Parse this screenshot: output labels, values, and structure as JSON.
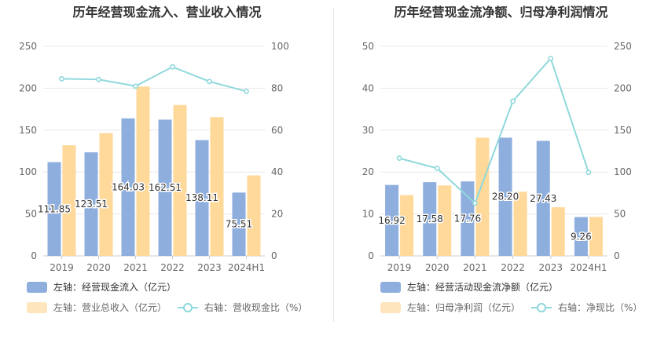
{
  "colors": {
    "bar_primary": "#8eaedd",
    "bar_secondary": "#ffd99a",
    "line": "#8fd8dc",
    "grid": "#e8e8e8",
    "axis_text": "#666666",
    "label_text": "#333333"
  },
  "chart_data": [
    {
      "type": "bar+line",
      "title": "历年经营现金流入、营业收入情况",
      "categories": [
        "2019",
        "2020",
        "2021",
        "2022",
        "2023",
        "2024H1"
      ],
      "left_axis": {
        "ylim": [
          0,
          250
        ],
        "ticks": [
          "0",
          "50",
          "100",
          "150",
          "200",
          "250"
        ]
      },
      "right_axis": {
        "ylim": [
          0,
          100
        ],
        "ticks": [
          "0",
          "20",
          "40",
          "60",
          "80",
          "100"
        ]
      },
      "series": [
        {
          "name": "左轴：经营现金流入（亿元）",
          "kind": "bar",
          "axis": "left",
          "values": [
            111.85,
            123.51,
            164.03,
            162.51,
            138.11,
            75.51
          ],
          "labels": [
            "111.85",
            "123.51",
            "164.03",
            "162.51",
            "138.11",
            "75.51"
          ]
        },
        {
          "name": "左轴：营业总收入（亿元）",
          "kind": "bar",
          "axis": "left",
          "values": [
            132,
            146.5,
            202,
            180,
            165.5,
            96
          ]
        },
        {
          "name": "右轴：营收现金比（%）",
          "kind": "line",
          "axis": "right",
          "values": [
            84.5,
            84.2,
            81,
            90.2,
            83.2,
            78.5
          ]
        }
      ]
    },
    {
      "type": "bar+line",
      "title": "历年经营现金流净额、归母净利润情况",
      "categories": [
        "2019",
        "2020",
        "2021",
        "2022",
        "2023",
        "2024H1"
      ],
      "left_axis": {
        "ylim": [
          0,
          50
        ],
        "ticks": [
          "0",
          "10",
          "20",
          "30",
          "40",
          "50"
        ]
      },
      "right_axis": {
        "ylim": [
          0,
          250
        ],
        "ticks": [
          "0",
          "50",
          "100",
          "150",
          "200",
          "250"
        ]
      },
      "series": [
        {
          "name": "左轴：经营活动现金流净额（亿元）",
          "kind": "bar",
          "axis": "left",
          "values": [
            16.92,
            17.58,
            17.76,
            28.2,
            27.43,
            9.26
          ],
          "labels": [
            "16.92",
            "17.58",
            "17.76",
            "28.20",
            "27.43",
            "9.26"
          ]
        },
        {
          "name": "左轴：归母净利润（亿元）",
          "kind": "bar",
          "axis": "left",
          "values": [
            14.5,
            16.8,
            28.2,
            15.3,
            11.6,
            9.3
          ]
        },
        {
          "name": "右轴：净现比（%）",
          "kind": "line",
          "axis": "right",
          "values": [
            116.5,
            104.5,
            62.8,
            184.5,
            235.5,
            99.5
          ]
        }
      ]
    }
  ]
}
